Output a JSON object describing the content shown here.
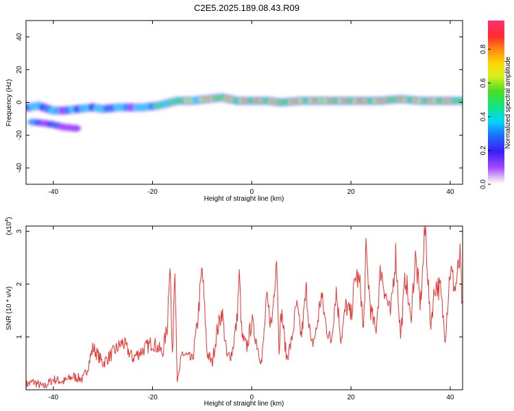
{
  "title": "C2E5.2025.189.08.43.R09",
  "spectrogram": {
    "ylabel": "Frequency (Hz)",
    "xlabel": "Height of straight line (km)",
    "xlim": [
      -45.5,
      42.5
    ],
    "ylim": [
      -50,
      50
    ],
    "xticks": [
      "-40",
      "-20",
      "0",
      "20",
      "40"
    ],
    "xtick_values": [
      -40,
      -20,
      0,
      20,
      40
    ],
    "yticks": [
      "40",
      "20",
      "0",
      "-20",
      "-40"
    ],
    "ytick_values": [
      40,
      20,
      0,
      -20,
      -40
    ],
    "colorbar": {
      "label": "Normalized spectral amplitude",
      "ticks": [
        "0.0",
        "0.2",
        "0.4",
        "0.6",
        "0.8"
      ],
      "tick_values": [
        0.0,
        0.2,
        0.4,
        0.6,
        0.8
      ],
      "range": [
        0,
        0.97
      ]
    }
  },
  "chart_data": [
    {
      "type": "heatmap",
      "name": "spectrogram",
      "xlim": [
        -45.5,
        42.5
      ],
      "ylim": [
        -50,
        50
      ],
      "ridge": {
        "x": [
          -45,
          -43,
          -40,
          -38,
          -35,
          -32,
          -30,
          -27,
          -25,
          -22,
          -19,
          -15,
          -12,
          -9,
          -6,
          -3,
          0,
          3,
          6,
          10,
          14,
          18,
          22,
          26,
          30,
          34,
          38,
          42
        ],
        "y": [
          -3,
          -2,
          -5,
          -5,
          -4,
          -3,
          -4,
          -3,
          -3,
          -3,
          -2,
          1,
          1,
          2,
          3,
          1,
          1,
          1,
          0,
          1,
          1,
          1,
          1,
          1,
          2,
          1,
          1,
          1
        ],
        "amplitude": [
          0.35,
          0.45,
          0.4,
          0.35,
          0.4,
          0.45,
          0.45,
          0.4,
          0.4,
          0.45,
          0.5,
          0.65,
          0.75,
          0.8,
          0.85,
          0.8,
          0.9,
          0.85,
          0.8,
          0.85,
          0.85,
          0.85,
          0.9,
          0.85,
          0.85,
          0.8,
          0.85,
          0.8
        ]
      },
      "secondary_branch": {
        "x": [
          -44,
          -41,
          -38,
          -35
        ],
        "y": [
          -12,
          -13,
          -15,
          -16
        ],
        "amplitude": [
          0.35,
          0.3,
          0.3,
          0.25
        ]
      }
    },
    {
      "type": "line",
      "name": "snr",
      "xlabel": "Height of straight line (km)",
      "ylabel": "SNR (10 * v/v)",
      "multiplier_label": "(x10",
      "multiplier_exp": "4",
      "xlim": [
        -45.5,
        42.5
      ],
      "ylim": [
        0,
        3.1
      ],
      "xticks": [
        "-40",
        "-20",
        "0",
        "20",
        "40"
      ],
      "xtick_values": [
        -40,
        -20,
        0,
        20,
        40
      ],
      "yticks": [
        "1",
        "2",
        "3"
      ],
      "ytick_values": [
        1,
        2,
        3
      ],
      "color": "#e8332f",
      "x": [
        -45.5,
        -44,
        -42,
        -40,
        -38,
        -36,
        -34,
        -33,
        -32,
        -30,
        -28,
        -26,
        -24,
        -22,
        -20,
        -18,
        -17,
        -16.5,
        -16,
        -15.5,
        -15,
        -14,
        -12,
        -11,
        -10,
        -9,
        -8,
        -7,
        -6,
        -5,
        -4,
        -3,
        -2.5,
        -2,
        -1,
        0,
        1,
        2,
        3,
        4,
        5,
        5.5,
        6,
        7,
        8,
        9,
        10,
        11,
        12,
        13,
        14,
        15,
        16,
        17,
        18,
        19,
        20,
        21,
        22,
        22.5,
        23,
        24,
        25,
        26,
        27,
        28,
        29,
        30,
        31,
        32,
        33,
        34,
        35,
        36,
        37,
        38,
        39,
        40,
        41,
        42,
        42.5
      ],
      "y": [
        0.1,
        0.15,
        0.05,
        0.2,
        0.15,
        0.25,
        0.2,
        0.45,
        0.8,
        0.5,
        0.7,
        0.9,
        0.6,
        0.75,
        0.9,
        0.7,
        1.2,
        2.6,
        0.5,
        2.5,
        0.1,
        0.7,
        0.55,
        1.2,
        2.3,
        0.7,
        0.5,
        1.1,
        1.5,
        0.6,
        0.7,
        1.3,
        2.2,
        1.0,
        0.8,
        1.3,
        0.9,
        0.5,
        1.7,
        1.2,
        2.6,
        0.8,
        1.5,
        0.6,
        0.9,
        1.6,
        1.0,
        1.9,
        0.8,
        1.1,
        1.8,
        1.2,
        0.9,
        1.9,
        0.95,
        1.6,
        1.4,
        2.2,
        1.9,
        1.0,
        2.6,
        1.5,
        1.1,
        2.3,
        1.8,
        1.4,
        2.6,
        1.0,
        2.2,
        1.3,
        2.5,
        1.6,
        3.1,
        1.2,
        2.0,
        1.9,
        1.0,
        2.3,
        1.9,
        2.5,
        1.4
      ]
    }
  ]
}
